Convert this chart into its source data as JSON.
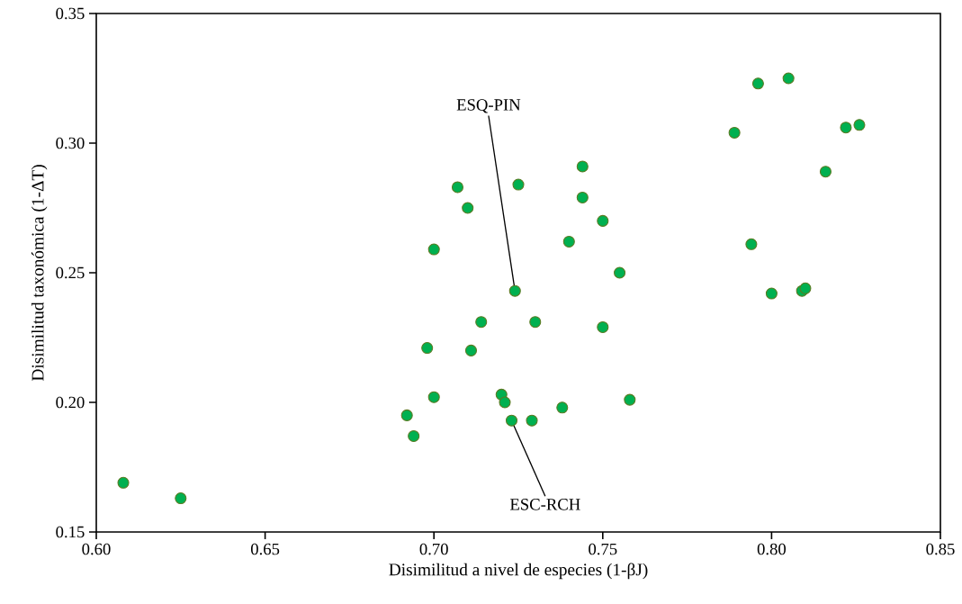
{
  "chart_data": {
    "type": "scatter",
    "xlabel": "Disimilitud a nivel de especies (1-βJ)",
    "ylabel": "Disimilitud taxonómica (1-ΔT)",
    "xlim": [
      0.6,
      0.85
    ],
    "xticks": [
      {
        "value": 0.6,
        "label": "0.60"
      },
      {
        "value": 0.65,
        "label": "0.65"
      },
      {
        "value": 0.7,
        "label": "0.70"
      },
      {
        "value": 0.75,
        "label": "0.75"
      },
      {
        "value": 0.8,
        "label": "0.80"
      },
      {
        "value": 0.85,
        "label": "0.85"
      }
    ],
    "ylim": [
      0.15,
      0.35
    ],
    "yticks": [
      {
        "value": 0.15,
        "label": "0.15"
      },
      {
        "value": 0.2,
        "label": "0.20"
      },
      {
        "value": 0.25,
        "label": "0.25"
      },
      {
        "value": 0.3,
        "label": "0.30"
      },
      {
        "value": 0.35,
        "label": "0.35"
      }
    ],
    "grid": false,
    "marker": "circle",
    "series": [
      {
        "color": "#00b050",
        "x": [
          0.608,
          0.625,
          0.707,
          0.725,
          0.744,
          0.71,
          0.744,
          0.75,
          0.7,
          0.74,
          0.755,
          0.724,
          0.714,
          0.73,
          0.75,
          0.698,
          0.711,
          0.7,
          0.72,
          0.721,
          0.738,
          0.758,
          0.692,
          0.694,
          0.723,
          0.729,
          0.796,
          0.805,
          0.789,
          0.822,
          0.826,
          0.816,
          0.794,
          0.8,
          0.809,
          0.81
        ],
        "values": [
          0.169,
          0.163,
          0.283,
          0.284,
          0.291,
          0.275,
          0.279,
          0.27,
          0.259,
          0.262,
          0.25,
          0.243,
          0.231,
          0.231,
          0.229,
          0.221,
          0.22,
          0.202,
          0.203,
          0.2,
          0.198,
          0.201,
          0.195,
          0.187,
          0.193,
          0.193,
          0.323,
          0.325,
          0.304,
          0.306,
          0.307,
          0.289,
          0.261,
          0.242,
          0.243,
          0.244
        ]
      }
    ],
    "annotations": [
      {
        "text": "ESQ-PIN",
        "x": 0.724,
        "y": 0.243
      },
      {
        "text": "ESC-RCH",
        "x": 0.723,
        "y": 0.193
      }
    ]
  }
}
